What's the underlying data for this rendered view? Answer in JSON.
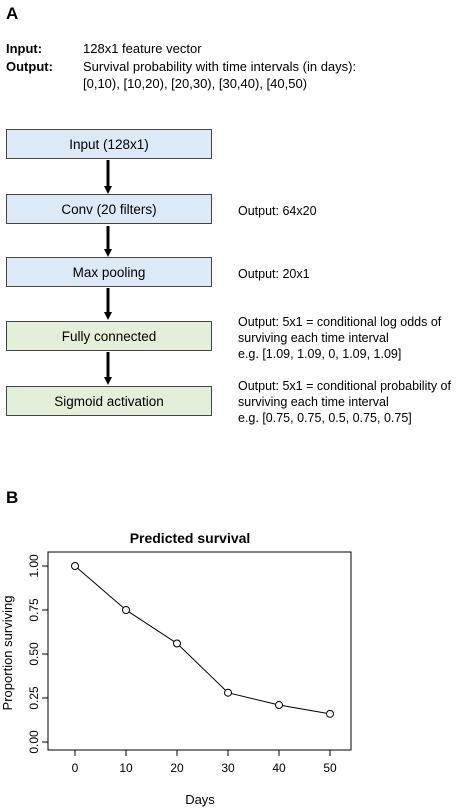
{
  "panel_a": {
    "label": "A",
    "input_key": "Input:",
    "input_value": "128x1 feature vector",
    "output_key": "Output:",
    "output_value_line1": "Survival probability with time intervals (in days):",
    "output_value_line2": "[0,10), [10,20), [20,30), [30,40), [40,50)",
    "boxes": [
      {
        "label": "Input (128x1)"
      },
      {
        "label": "Conv (20 filters)"
      },
      {
        "label": "Max pooling"
      },
      {
        "label": "Fully connected"
      },
      {
        "label": "Sigmoid activation"
      }
    ],
    "notes": [
      {
        "lines": [
          "Output: 64x20"
        ]
      },
      {
        "lines": [
          "Output: 20x1"
        ]
      },
      {
        "lines": [
          "Output: 5x1 = conditional log odds of",
          "surviving each time interval",
          "e.g. [1.09, 1.09, 0, 1.09, 1.09]"
        ]
      },
      {
        "lines": [
          "Output: 5x1 = conditional probability of",
          "surviving each time interval",
          "e.g. [0.75, 0.75, 0.5, 0.75, 0.75]"
        ]
      }
    ],
    "colors": {
      "blue_box": "#dce9f6",
      "green_box": "#e2efd9"
    }
  },
  "panel_b": {
    "label": "B"
  },
  "chart_data": {
    "type": "line",
    "title": "Predicted survival",
    "xlabel": "Days",
    "ylabel": "Proportion surviving",
    "x": [
      0,
      10,
      20,
      30,
      40,
      50
    ],
    "y": [
      1.0,
      0.75,
      0.56,
      0.28,
      0.21,
      0.16
    ],
    "xticks": [
      0,
      10,
      20,
      30,
      40,
      50
    ],
    "yticks": [
      "0.00",
      "0.25",
      "0.50",
      "0.75",
      "1.00"
    ],
    "xlim": [
      0,
      50
    ],
    "ylim": [
      0,
      1
    ],
    "grid": false,
    "marker": "open-circle"
  }
}
